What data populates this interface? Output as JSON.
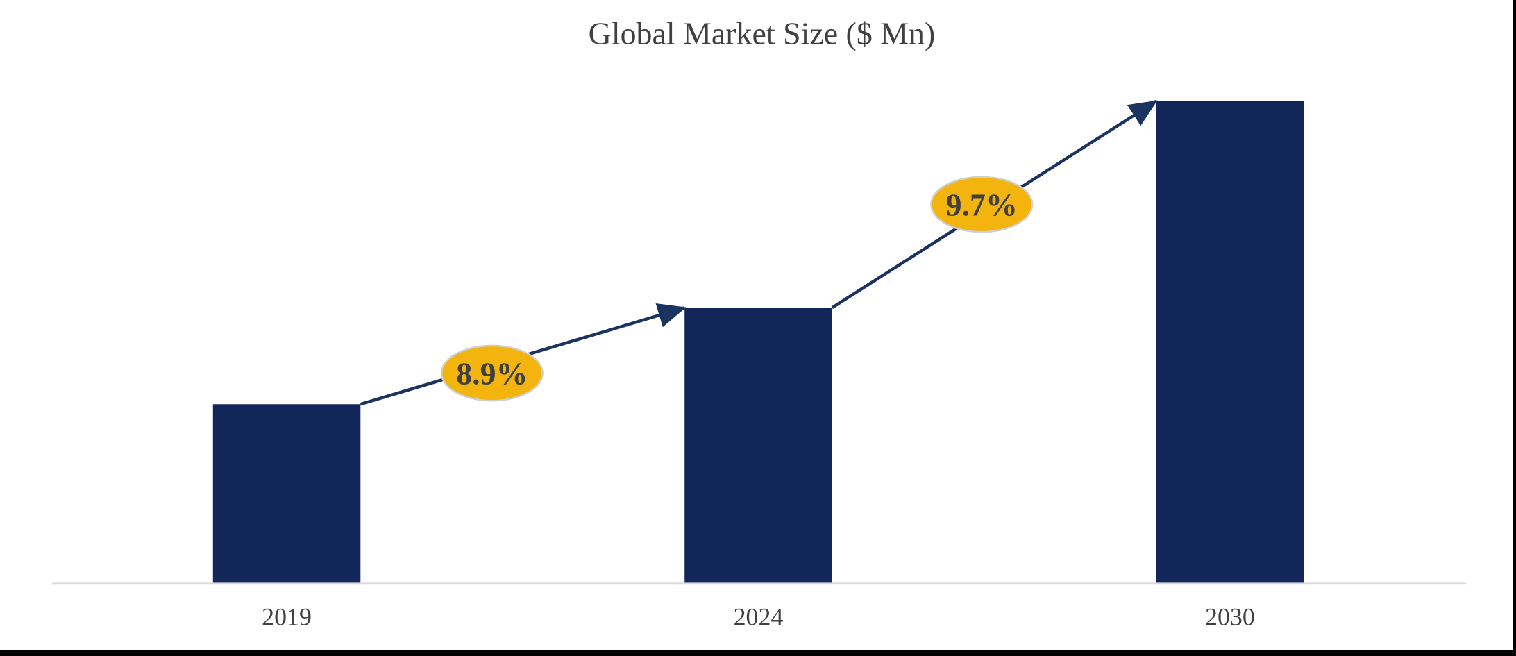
{
  "chart_data": {
    "type": "bar",
    "title": "Global Market Size ($ Mn)",
    "categories": [
      "2019",
      "2024",
      "2030"
    ],
    "values": [
      37.2,
      57.2,
      100
    ],
    "values_scale": "relative; no value axis or data labels shown in chart",
    "series": [
      {
        "name": "Global Market Size",
        "values": [
          37.2,
          57.2,
          100
        ]
      }
    ],
    "annotations": [
      {
        "between": [
          "2019",
          "2024"
        ],
        "label": "8.9%"
      },
      {
        "between": [
          "2024",
          "2030"
        ],
        "label": "9.7%"
      }
    ],
    "xlabel": "",
    "ylabel": "",
    "ylim_shown": false,
    "gridlines": false,
    "legend": false,
    "colors": {
      "bar": "#12265a",
      "connector_arrow": "#1b3361",
      "badge_fill": "#f2b40d",
      "badge_border": "#cfd0d0",
      "badge_text": "#404040",
      "title_text": "#404040",
      "axis_label_text": "#404040",
      "axis_line": "#d9d9d9",
      "frame_border": "#000000",
      "background": "#ffffff"
    }
  }
}
